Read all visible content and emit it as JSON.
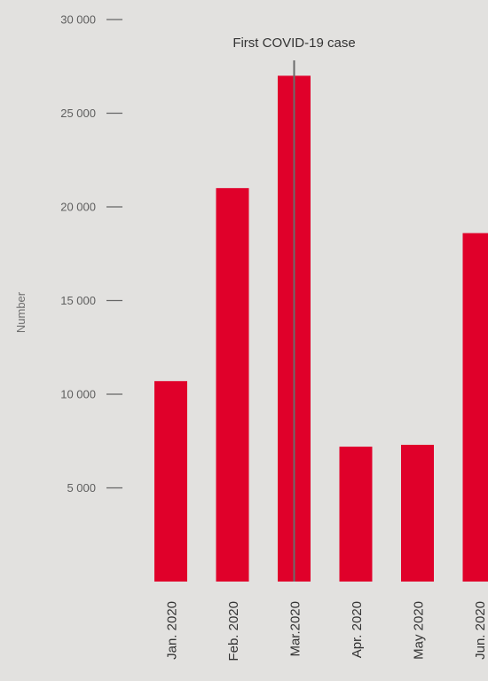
{
  "chart_data": {
    "type": "bar",
    "title": "",
    "xlabel": "",
    "ylabel": "Number",
    "categories": [
      "Jan. 2020",
      "Feb. 2020",
      "Mar.2020",
      "Apr. 2020",
      "May 2020",
      "Jun. 2020"
    ],
    "values": [
      10700,
      21000,
      27000,
      7200,
      7300,
      18600
    ],
    "ylim": [
      0,
      30000
    ],
    "yticks": [
      5000,
      10000,
      15000,
      20000,
      25000,
      30000
    ],
    "ytick_labels": [
      "5 000",
      "10 000",
      "15 000",
      "20 000",
      "25 000",
      "30 000"
    ],
    "grid": false,
    "legend": "none",
    "bar_color": "#e0002a",
    "annotation": {
      "text": "First COVID-19 case",
      "category": "Mar.2020"
    }
  }
}
